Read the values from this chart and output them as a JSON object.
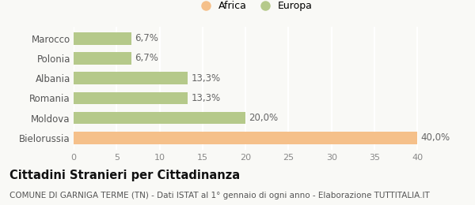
{
  "categories": [
    "Marocco",
    "Polonia",
    "Albania",
    "Romania",
    "Moldova",
    "Bielorussia"
  ],
  "values": [
    40.0,
    20.0,
    13.3,
    13.3,
    6.7,
    6.7
  ],
  "bar_colors": [
    "#f5c08a",
    "#b5c98a",
    "#b5c98a",
    "#b5c98a",
    "#b5c98a",
    "#b5c98a"
  ],
  "bar_labels": [
    "40,0%",
    "20,0%",
    "13,3%",
    "13,3%",
    "6,7%",
    "6,7%"
  ],
  "legend": [
    {
      "label": "Africa",
      "color": "#f5c08a"
    },
    {
      "label": "Europa",
      "color": "#b5c98a"
    }
  ],
  "xlim": [
    0,
    42
  ],
  "xticks": [
    0,
    5,
    10,
    15,
    20,
    25,
    30,
    35,
    40
  ],
  "title_bold": "Cittadini Stranieri per Cittadinanza",
  "subtitle": "COMUNE DI GARNIGA TERME (TN) - Dati ISTAT al 1° gennaio di ogni anno - Elaborazione TUTTITALIA.IT",
  "background_color": "#f9f9f6",
  "plot_background": "#f9f9f6",
  "grid_color": "#ffffff",
  "bar_label_fontsize": 8.5,
  "tick_fontsize": 8,
  "ytick_fontsize": 8.5,
  "title_fontsize": 10.5,
  "subtitle_fontsize": 7.5,
  "legend_fontsize": 9
}
